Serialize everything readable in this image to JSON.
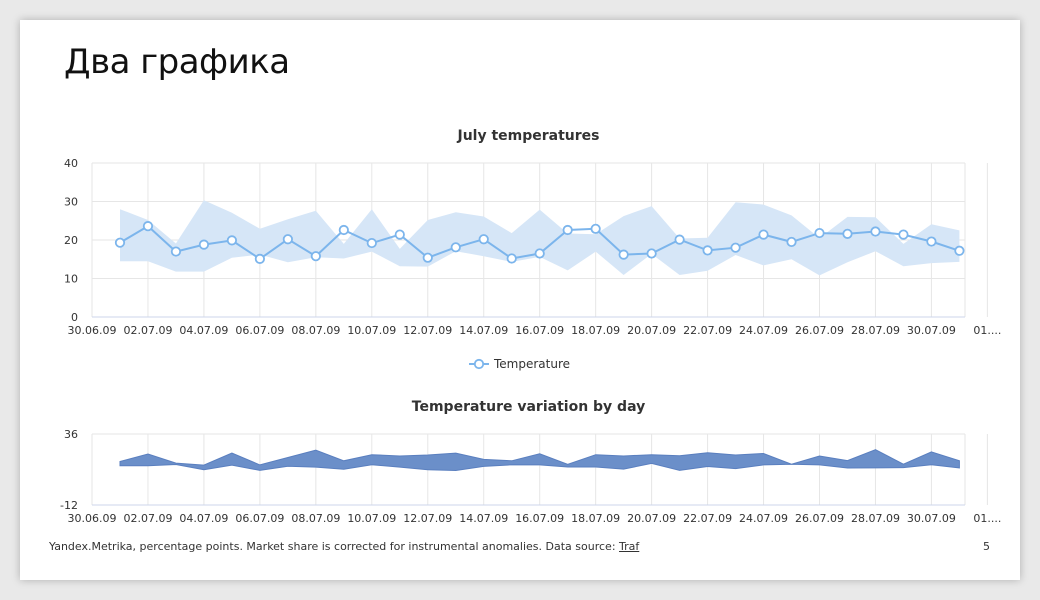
{
  "slide": {
    "title": "Два графика",
    "footer_text": "Yandex.Metrika, percentage points. Market share is corrected for instrumental anomalies. Data source: ",
    "footer_link": "Traf",
    "page_number": "5"
  },
  "colors": {
    "line": "#7cb5ec",
    "band": "#d6e6f7",
    "variation": "#6b8fc9",
    "grid": "#e6e6e6"
  },
  "chart_data": [
    {
      "type": "line",
      "title": "July temperatures",
      "xlabel": "",
      "ylabel": "",
      "ylim": [
        0,
        40
      ],
      "yticks": [
        0,
        10,
        20,
        30,
        40
      ],
      "xticks": [
        "30.06.09",
        "02.07.09",
        "04.07.09",
        "06.07.09",
        "08.07.09",
        "10.07.09",
        "12.07.09",
        "14.07.09",
        "16.07.09",
        "18.07.09",
        "20.07.09",
        "22.07.09",
        "24.07.09",
        "26.07.09",
        "28.07.09",
        "30.07.09",
        "01...."
      ],
      "grid": true,
      "legend_position": "bottom-center",
      "x": [
        "01.07",
        "02.07",
        "03.07",
        "04.07",
        "05.07",
        "06.07",
        "07.07",
        "08.07",
        "09.07",
        "10.07",
        "11.07",
        "12.07",
        "13.07",
        "14.07",
        "15.07",
        "16.07",
        "17.07",
        "18.07",
        "19.07",
        "20.07",
        "21.07",
        "22.07",
        "23.07",
        "24.07",
        "25.07",
        "26.07",
        "27.07",
        "28.07",
        "29.07",
        "30.07",
        "31.07"
      ],
      "series": [
        {
          "name": "Temperature",
          "values": [
            19.3,
            23.6,
            17.0,
            18.8,
            19.9,
            15.1,
            20.2,
            15.8,
            22.6,
            19.2,
            21.4,
            15.4,
            18.1,
            20.2,
            15.2,
            16.5,
            22.6,
            22.9,
            16.2,
            16.5,
            20.1,
            17.3,
            18.0,
            21.4,
            19.5,
            21.8,
            21.6,
            22.2,
            21.4,
            19.6,
            17.2
          ]
        },
        {
          "name": "Range",
          "low": [
            14.5,
            14.5,
            11.8,
            11.8,
            15.4,
            16.2,
            14.2,
            15.5,
            15.2,
            17.0,
            13.2,
            13.1,
            17.1,
            15.8,
            14.3,
            15.6,
            12.1,
            17.0,
            10.9,
            16.4,
            10.9,
            12.0,
            16.1,
            13.4,
            15.0,
            10.8,
            14.2,
            17.1,
            13.2,
            14.0,
            14.3
          ],
          "high": [
            28.0,
            25.2,
            19.1,
            30.3,
            27.1,
            22.9,
            25.4,
            27.6,
            19.0,
            28.0,
            17.7,
            25.2,
            27.2,
            26.1,
            21.8,
            27.9,
            21.7,
            21.5,
            26.2,
            28.8,
            20.4,
            20.6,
            29.8,
            29.2,
            26.4,
            20.5,
            26.0,
            25.9,
            19.0,
            24.1,
            22.5
          ]
        }
      ]
    },
    {
      "type": "area",
      "title": "Temperature variation by day",
      "xlabel": "",
      "ylabel": "",
      "ylim": [
        -12,
        36
      ],
      "yticks": [
        -12,
        36
      ],
      "xticks": [
        "30.06.09",
        "02.07.09",
        "04.07.09",
        "06.07.09",
        "08.07.09",
        "10.07.09",
        "12.07.09",
        "14.07.09",
        "16.07.09",
        "18.07.09",
        "20.07.09",
        "22.07.09",
        "24.07.09",
        "26.07.09",
        "28.07.09",
        "30.07.09",
        "01...."
      ],
      "grid": true,
      "x": [
        "01.07",
        "02.07",
        "03.07",
        "04.07",
        "05.07",
        "06.07",
        "07.07",
        "08.07",
        "09.07",
        "10.07",
        "11.07",
        "12.07",
        "13.07",
        "14.07",
        "15.07",
        "16.07",
        "17.07",
        "18.07",
        "19.07",
        "20.07",
        "21.07",
        "22.07",
        "23.07",
        "24.07",
        "25.07",
        "26.07",
        "27.07",
        "28.07",
        "29.07",
        "30.07",
        "31.07"
      ],
      "series": [
        {
          "name": "",
          "low": [
            14.5,
            14.5,
            15.4,
            11.8,
            15.0,
            11.4,
            14.2,
            13.6,
            12.2,
            15.2,
            13.6,
            11.8,
            11.3,
            14.1,
            15.2,
            15.1,
            13.7,
            13.7,
            12.3,
            16.1,
            11.4,
            14.0,
            12.6,
            15.1,
            15.6,
            15.1,
            13.0,
            13.1,
            13.3,
            15.2,
            13.1
          ],
          "high": [
            17.4,
            22.5,
            16.3,
            15.0,
            23.1,
            15.1,
            20.1,
            25.1,
            17.9,
            22.0,
            21.1,
            21.8,
            23.1,
            18.8,
            17.9,
            22.6,
            15.5,
            22.0,
            21.1,
            22.0,
            21.3,
            23.3,
            21.8,
            22.8,
            15.6,
            21.1,
            18.0,
            25.4,
            15.6,
            23.9,
            17.9
          ]
        }
      ]
    }
  ]
}
